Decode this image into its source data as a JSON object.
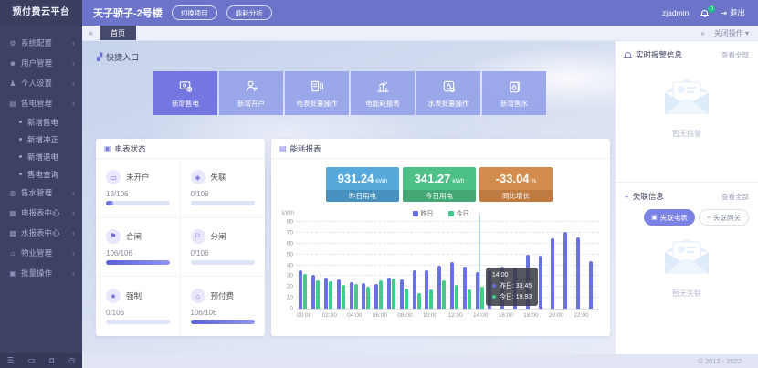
{
  "brand": {
    "title": "预付费云平台"
  },
  "sidebar": {
    "items": [
      {
        "label": "系统配置",
        "icon": "gear-icon"
      },
      {
        "label": "用户管理",
        "icon": "users-icon"
      },
      {
        "label": "个人设置",
        "icon": "person-icon"
      },
      {
        "label": "售电管理",
        "icon": "sell-electric-icon",
        "children": [
          "新增售电",
          "新增冲正",
          "新增退电",
          "售电查询"
        ]
      },
      {
        "label": "售水管理",
        "icon": "sell-water-icon"
      },
      {
        "label": "电报表中心",
        "icon": "electric-report-icon"
      },
      {
        "label": "水报表中心",
        "icon": "water-report-icon"
      },
      {
        "label": "物业管理",
        "icon": "property-icon"
      },
      {
        "label": "批量操作",
        "icon": "batch-icon"
      }
    ],
    "bottom_icons": [
      "menu-icon",
      "monitor-icon",
      "lock-icon",
      "power-icon"
    ]
  },
  "header": {
    "project_title": "天子骄子-2号楼",
    "switch_project": "切换项目",
    "energy_analysis": "能耗分析",
    "username": "zjadmin",
    "badge_count": "0",
    "logout": "退出"
  },
  "tabbar": {
    "active_tab": "首页",
    "close_ops": "关闭操作 ▾"
  },
  "quick_entry": {
    "title": "快捷入口",
    "buttons": [
      {
        "label": "新增售电",
        "icon": "card-plus-icon",
        "active": true
      },
      {
        "label": "新增开户",
        "icon": "user-plus-icon",
        "active": false
      },
      {
        "label": "电表批量操作",
        "icon": "meter-batch-icon",
        "active": false
      },
      {
        "label": "电能耗报表",
        "icon": "energy-chart-icon",
        "active": false
      },
      {
        "label": "水表批量操作",
        "icon": "water-batch-icon",
        "active": false
      },
      {
        "label": "新增售水",
        "icon": "water-plus-icon",
        "active": false
      }
    ]
  },
  "meter_status": {
    "title": "电表状态",
    "cells": [
      {
        "label": "未开户",
        "value": "13/106",
        "pct": 12,
        "icon": "no-account-icon"
      },
      {
        "label": "失联",
        "value": "0/106",
        "pct": 0,
        "icon": "offline-icon"
      },
      {
        "label": "合闸",
        "value": "106/106",
        "pct": 100,
        "icon": "switch-on-icon"
      },
      {
        "label": "分闸",
        "value": "0/106",
        "pct": 0,
        "icon": "switch-off-icon"
      },
      {
        "label": "强制",
        "value": "0/106",
        "pct": 0,
        "icon": "force-icon"
      },
      {
        "label": "预付费",
        "value": "106/106",
        "pct": 100,
        "icon": "prepaid-icon"
      }
    ]
  },
  "energy": {
    "title": "能耗报表",
    "stats": [
      {
        "value": "931.24",
        "unit": "kWh",
        "label": "昨日用电",
        "color": "#56a9da",
        "label_color": "#4691bd"
      },
      {
        "value": "341.27",
        "unit": "kWh",
        "label": "今日用电",
        "color": "#4ec188",
        "label_color": "#44a876"
      },
      {
        "value": "-33.04",
        "unit": "%",
        "label": "同比增长",
        "color": "#d28c4d",
        "label_color": "#bf7a3f"
      }
    ]
  },
  "chart_data": {
    "type": "bar",
    "title": "能耗报表",
    "ylabel": "kWh",
    "ylim": [
      0,
      80
    ],
    "yticks": [
      0,
      10,
      20,
      30,
      40,
      50,
      60,
      70,
      80
    ],
    "grid": "dashed",
    "legend_position": "top",
    "x": [
      "00:00",
      "01:00",
      "02:00",
      "03:00",
      "04:00",
      "05:00",
      "06:00",
      "07:00",
      "08:00",
      "09:00",
      "10:00",
      "11:00",
      "12:00",
      "13:00",
      "14:00",
      "15:00",
      "16:00",
      "17:00",
      "18:00",
      "19:00",
      "20:00",
      "21:00",
      "22:00",
      "23:00"
    ],
    "x_label_every": 2,
    "series": [
      {
        "name": "昨日",
        "color": "#6a71e0",
        "values": [
          35,
          31,
          28.5,
          27,
          24.5,
          24,
          23,
          28.5,
          27,
          35,
          35.5,
          39.5,
          43,
          38.5,
          33.45,
          34.5,
          39,
          38,
          50,
          48.5,
          65,
          71,
          65.5,
          43.5
        ]
      },
      {
        "name": "今日",
        "color": "#41cb8d",
        "values": [
          32,
          26,
          25.5,
          22,
          22.5,
          20.5,
          26.5,
          28,
          18.5,
          14.5,
          17.5,
          26.5,
          22,
          17.5,
          19.93,
          null,
          null,
          null,
          null,
          null,
          null,
          null,
          null,
          null
        ]
      }
    ],
    "tooltip": {
      "x": "14:00",
      "entries": [
        {
          "name": "昨日",
          "value": "33.45"
        },
        {
          "name": "今日",
          "value": "19.93"
        }
      ]
    }
  },
  "alarm_panel": {
    "title": "实时报警信息",
    "view_all": "查看全部",
    "empty": "暂无报警"
  },
  "offline_panel": {
    "title": "失联信息",
    "view_all": "查看全部",
    "btn_meter": "失联电表",
    "btn_gateway": "失联网关",
    "empty": "暂无失联"
  },
  "footer": {
    "copyright": "© 2012 - 2022"
  }
}
